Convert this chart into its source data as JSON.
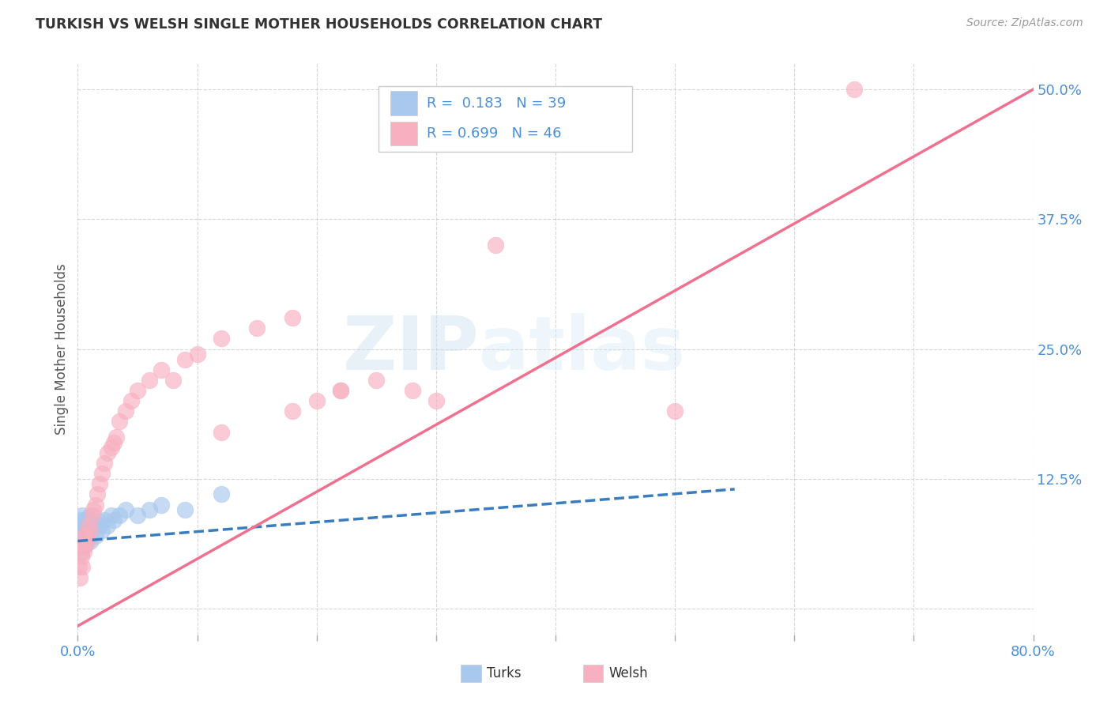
{
  "title": "TURKISH VS WELSH SINGLE MOTHER HOUSEHOLDS CORRELATION CHART",
  "source": "Source: ZipAtlas.com",
  "ylabel": "Single Mother Households",
  "watermark_zip": "ZIP",
  "watermark_atlas": "atlas",
  "xlim": [
    0.0,
    0.8
  ],
  "ylim": [
    -0.025,
    0.525
  ],
  "xticks": [
    0.0,
    0.1,
    0.2,
    0.3,
    0.4,
    0.5,
    0.6,
    0.7,
    0.8
  ],
  "xticklabels": [
    "0.0%",
    "",
    "",
    "",
    "",
    "",
    "",
    "",
    "80.0%"
  ],
  "yticks": [
    0.0,
    0.125,
    0.25,
    0.375,
    0.5
  ],
  "yticklabels": [
    "",
    "12.5%",
    "25.0%",
    "37.5%",
    "50.0%"
  ],
  "grid_color": "#cccccc",
  "background_color": "#ffffff",
  "turks_color": "#a8c8ee",
  "welsh_color": "#f8b0c0",
  "turks_line_color": "#3a7cc0",
  "welsh_line_color": "#f07090",
  "turks_R": 0.183,
  "turks_N": 39,
  "welsh_R": 0.699,
  "welsh_N": 46,
  "turks_scatter_x": [
    0.001,
    0.001,
    0.002,
    0.002,
    0.002,
    0.003,
    0.003,
    0.003,
    0.004,
    0.004,
    0.005,
    0.005,
    0.006,
    0.006,
    0.007,
    0.007,
    0.008,
    0.008,
    0.009,
    0.009,
    0.01,
    0.01,
    0.012,
    0.013,
    0.015,
    0.016,
    0.018,
    0.02,
    0.022,
    0.025,
    0.028,
    0.03,
    0.035,
    0.04,
    0.05,
    0.06,
    0.07,
    0.09,
    0.12
  ],
  "turks_scatter_y": [
    0.065,
    0.07,
    0.06,
    0.075,
    0.08,
    0.055,
    0.07,
    0.085,
    0.065,
    0.09,
    0.06,
    0.08,
    0.07,
    0.085,
    0.065,
    0.075,
    0.08,
    0.07,
    0.075,
    0.085,
    0.065,
    0.09,
    0.075,
    0.08,
    0.07,
    0.085,
    0.08,
    0.075,
    0.085,
    0.08,
    0.09,
    0.085,
    0.09,
    0.095,
    0.09,
    0.095,
    0.1,
    0.095,
    0.11
  ],
  "welsh_scatter_x": [
    0.001,
    0.002,
    0.003,
    0.003,
    0.004,
    0.005,
    0.005,
    0.006,
    0.007,
    0.008,
    0.009,
    0.01,
    0.012,
    0.013,
    0.015,
    0.016,
    0.018,
    0.02,
    0.022,
    0.025,
    0.028,
    0.03,
    0.032,
    0.035,
    0.04,
    0.045,
    0.05,
    0.06,
    0.07,
    0.08,
    0.09,
    0.1,
    0.12,
    0.15,
    0.18,
    0.2,
    0.22,
    0.25,
    0.28,
    0.3,
    0.35,
    0.5,
    0.65,
    0.18,
    0.22,
    0.12
  ],
  "welsh_scatter_y": [
    0.04,
    0.03,
    0.05,
    0.06,
    0.04,
    0.055,
    0.07,
    0.06,
    0.07,
    0.065,
    0.08,
    0.075,
    0.09,
    0.095,
    0.1,
    0.11,
    0.12,
    0.13,
    0.14,
    0.15,
    0.155,
    0.16,
    0.165,
    0.18,
    0.19,
    0.2,
    0.21,
    0.22,
    0.23,
    0.22,
    0.24,
    0.245,
    0.26,
    0.27,
    0.28,
    0.2,
    0.21,
    0.22,
    0.21,
    0.2,
    0.35,
    0.19,
    0.5,
    0.19,
    0.21,
    0.17
  ],
  "turks_line_x": [
    0.0,
    0.55
  ],
  "turks_line_y": [
    0.065,
    0.115
  ],
  "welsh_line_x": [
    -0.005,
    0.8
  ],
  "welsh_line_y": [
    -0.02,
    0.5
  ],
  "legend_turks_label": "R =  0.183   N = 39",
  "legend_welsh_label": "R = 0.699   N = 46",
  "bottom_legend_turks": "Turks",
  "bottom_legend_welsh": "Welsh"
}
